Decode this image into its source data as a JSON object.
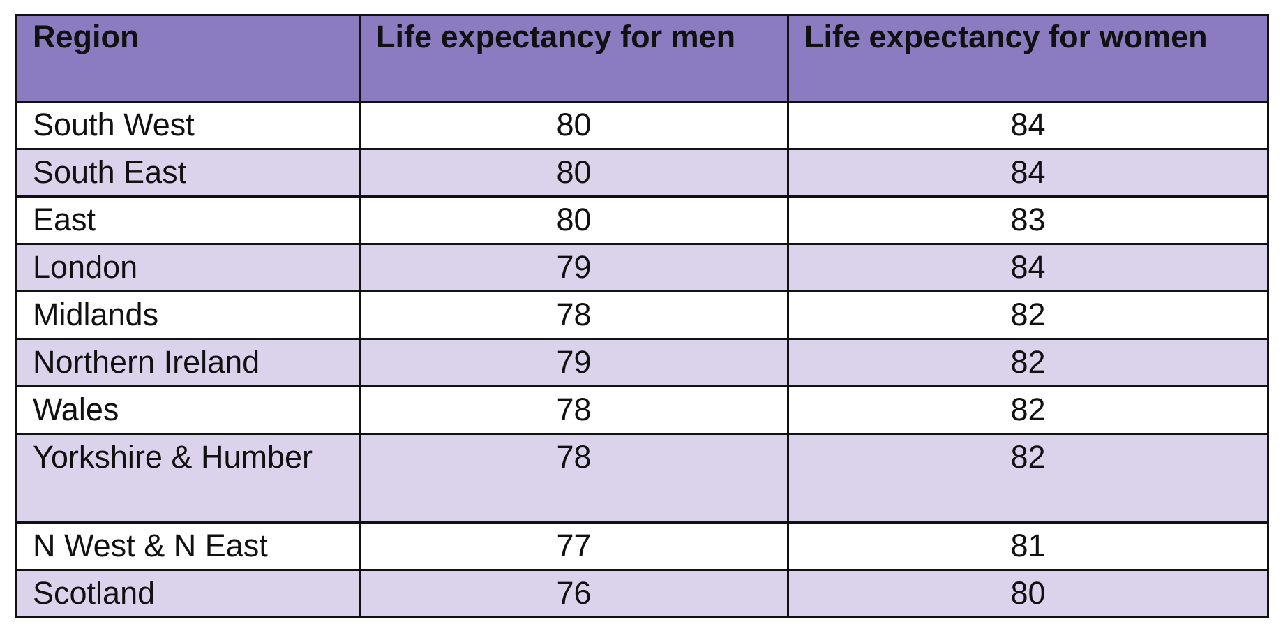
{
  "table": {
    "headers": [
      "Region",
      "Life expectancy for men",
      "Life expectancy for women"
    ],
    "rows": [
      {
        "region": "South West",
        "men": "80",
        "women": "84"
      },
      {
        "region": "South East",
        "men": "80",
        "women": "84"
      },
      {
        "region": "East",
        "men": "80",
        "women": "83"
      },
      {
        "region": "London",
        "men": "79",
        "women": "84"
      },
      {
        "region": "Midlands",
        "men": "78",
        "women": "82"
      },
      {
        "region": "Northern Ireland",
        "men": "79",
        "women": "82"
      },
      {
        "region": "Wales",
        "men": "78",
        "women": "82"
      },
      {
        "region": "Yorkshire & Humber",
        "men": "78",
        "women": "82"
      },
      {
        "region": "N West & N East",
        "men": "77",
        "women": "81"
      },
      {
        "region": "Scotland",
        "men": "76",
        "women": "80"
      }
    ]
  },
  "colors": {
    "header_bg": "#8b7cc1",
    "row_alt_bg": "#dbd3eb",
    "row_bg": "#ffffff",
    "border": "#111111"
  }
}
